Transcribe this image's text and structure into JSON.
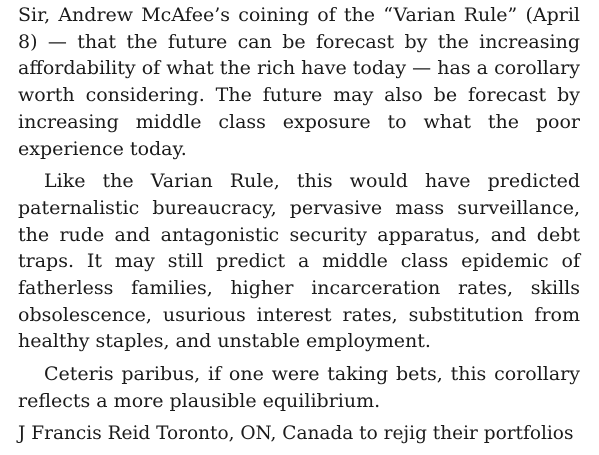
{
  "letter": {
    "paragraphs": [
      "Sir, Andrew McAfee’s coining of the “Varian Rule” (April 8) — that the future can be forecast by the increasing affordability of what the rich have today — has a corollary worth considering. The future may also be forecast by increasing middle class exposure to what the poor experience today.",
      "Like the Varian Rule, this would have predicted paternalistic bureaucracy, pervasive mass surveillance, the rude and antagonistic security apparatus, and debt traps. It may still predict a middle class epidemic of fatherless families, higher incarceration rates, skills obsolescence, usurious interest rates, substitution from healthy staples, and unstable employment.",
      "Ceteris paribus, if one were taking bets, this corollary reflects a more plausible equilibrium."
    ],
    "signature": "J Francis Reid Toronto, ON, Canada to rejig their portfolios"
  }
}
